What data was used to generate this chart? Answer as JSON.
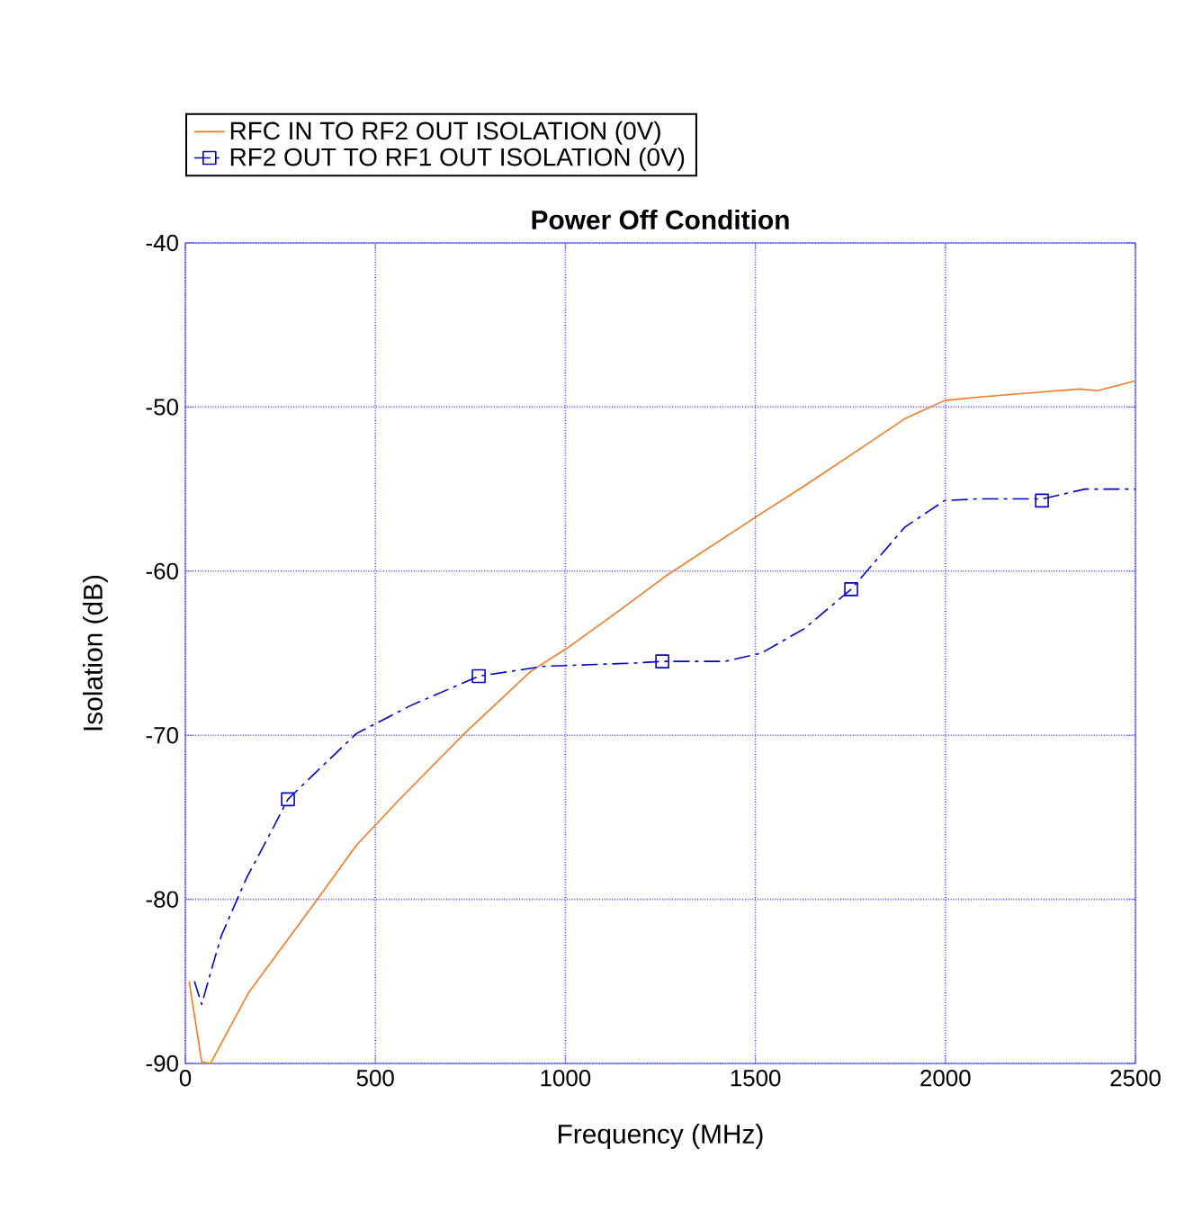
{
  "chart_data": {
    "type": "line",
    "title": "Power Off Condition",
    "xlabel": "Frequency (MHz)",
    "ylabel": "Isolation (dB)",
    "xlim": [
      0,
      2500
    ],
    "ylim": [
      -90,
      -40
    ],
    "xticks": [
      0,
      500,
      1000,
      1500,
      2000,
      2500
    ],
    "yticks": [
      -90,
      -80,
      -70,
      -60,
      -50,
      -40
    ],
    "grid": true,
    "legend": "top left",
    "series": [
      {
        "name": "RFC IN TO RF2 OUT ISOLATION (0V)",
        "color": "#f47a20",
        "marker": "none",
        "line_style": "solid",
        "x": [
          10,
          43,
          66,
          166,
          341,
          450,
          568,
          734,
          909,
          1004,
          1136,
          1264,
          1501,
          1629,
          1785,
          1894,
          1998,
          2083,
          2244,
          2353,
          2400,
          2500
        ],
        "values": [
          -85.0,
          -89.9,
          -90.0,
          -85.7,
          -80.2,
          -76.7,
          -73.8,
          -69.9,
          -66.1,
          -64.7,
          -62.5,
          -60.3,
          -56.7,
          -54.8,
          -52.4,
          -50.7,
          -49.6,
          -49.4,
          -49.1,
          -48.9,
          -49.0,
          -48.4
        ]
      },
      {
        "name": "RF2 OUT TO RF1 OUT ISOLATION (0V)",
        "color": "#0000cc",
        "marker": "none",
        "line_style": "dashed",
        "x": [
          24,
          43,
          71,
          95,
          161,
          223,
          270,
          355,
          450,
          592,
          772,
          942,
          1065,
          1180,
          1255,
          1420,
          1515,
          1629,
          1752,
          1894,
          1998,
          2083,
          2254,
          2367,
          2500
        ],
        "values": [
          -85.0,
          -86.4,
          -84.1,
          -82.2,
          -78.7,
          -76.0,
          -73.9,
          -72.0,
          -69.9,
          -68.2,
          -66.4,
          -65.8,
          -65.7,
          -65.6,
          -65.5,
          -65.5,
          -65.0,
          -63.5,
          -61.1,
          -57.3,
          -55.7,
          -55.6,
          -55.6,
          -55.0,
          -55.0
        ]
      },
      {
        "type": "scatter",
        "color": "#0000cc",
        "marker": "square",
        "x": [
          270,
          772,
          1255,
          1752,
          2254
        ],
        "values": [
          -73.9,
          -66.4,
          -65.5,
          -61.1,
          -55.7
        ]
      }
    ]
  }
}
